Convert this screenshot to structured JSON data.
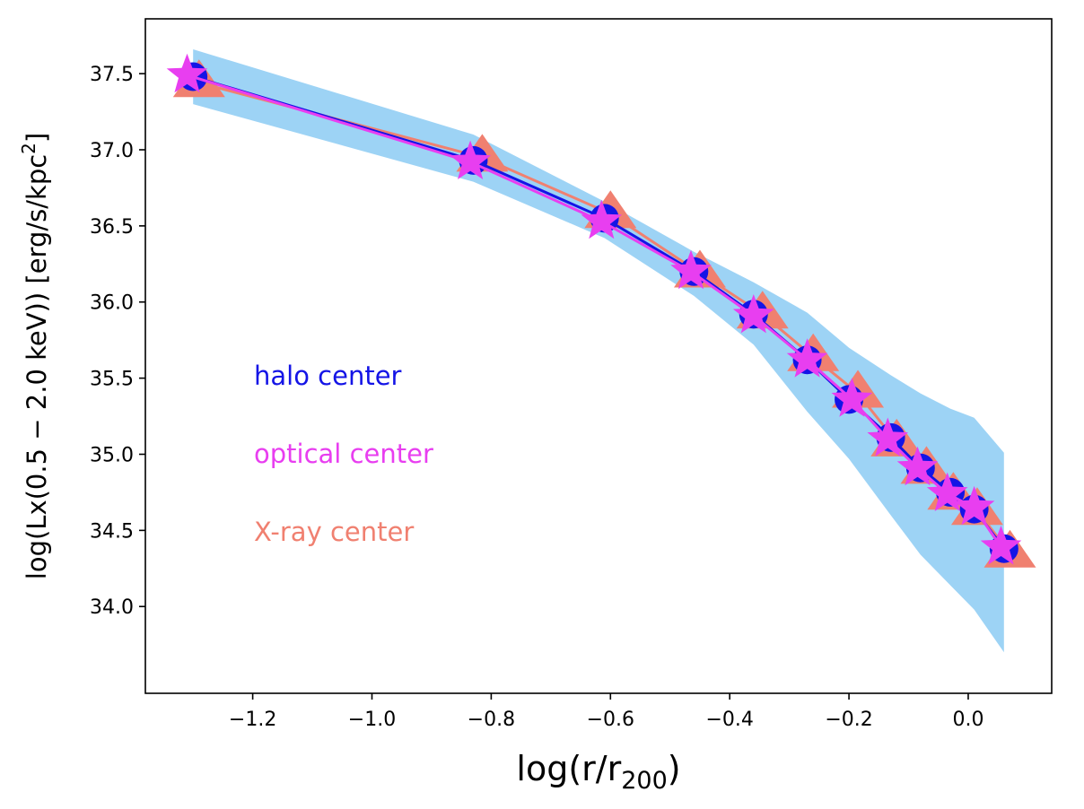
{
  "chart_data": {
    "type": "line",
    "title": "",
    "xlabel": "log(r/r200)",
    "xlabel_main": "log(r/r",
    "xlabel_sub": "200",
    "xlabel_close": ")",
    "ylabel": "log(Lx(0.5 − 2.0 keV)) [erg/s/kpc2]",
    "ylabel_main": "log(Lx(0.5 − 2.0 keV)) [erg/s/kpc",
    "ylabel_sup": "2",
    "ylabel_close": "]",
    "xlim": [
      -1.38,
      0.14
    ],
    "ylim": [
      33.43,
      37.86
    ],
    "xticks": [
      -1.2,
      -1.0,
      -0.8,
      -0.6,
      -0.4,
      -0.2,
      0.0
    ],
    "xtick_labels": [
      "−1.2",
      "−1.0",
      "−0.8",
      "−0.6",
      "−0.4",
      "−0.2",
      "0.0"
    ],
    "yticks": [
      34.0,
      34.5,
      35.0,
      35.5,
      36.0,
      36.5,
      37.0,
      37.5
    ],
    "ytick_labels": [
      "34.0",
      "34.5",
      "35.0",
      "35.5",
      "36.0",
      "36.5",
      "37.0",
      "37.5"
    ],
    "band": {
      "name": "halo center scatter",
      "color": "#9dd3f5",
      "x": [
        -1.3,
        -0.83,
        -0.61,
        -0.46,
        -0.36,
        -0.27,
        -0.2,
        -0.13,
        -0.08,
        -0.03,
        0.01,
        0.06
      ],
      "upper": [
        37.66,
        37.1,
        36.66,
        36.33,
        36.13,
        35.93,
        35.7,
        35.52,
        35.4,
        35.3,
        35.24,
        35.01
      ],
      "lower": [
        37.3,
        36.79,
        36.42,
        36.04,
        35.72,
        35.28,
        34.97,
        34.6,
        34.34,
        34.14,
        33.98,
        33.7
      ]
    },
    "series": [
      {
        "name": "halo center",
        "color": "#1414e6",
        "marker": "circle",
        "x": [
          -1.3,
          -0.83,
          -0.61,
          -0.46,
          -0.36,
          -0.27,
          -0.2,
          -0.13,
          -0.08,
          -0.03,
          0.01,
          0.06
        ],
        "values": [
          37.48,
          36.93,
          36.55,
          36.2,
          35.92,
          35.62,
          35.36,
          35.11,
          34.91,
          34.75,
          34.64,
          34.38
        ]
      },
      {
        "name": "X-ray center",
        "color": "#f08070",
        "marker": "triangle",
        "x": [
          -1.29,
          -0.815,
          -0.6,
          -0.45,
          -0.345,
          -0.26,
          -0.185,
          -0.12,
          -0.07,
          -0.025,
          0.015,
          0.07
        ],
        "values": [
          37.44,
          36.95,
          36.58,
          36.19,
          35.92,
          35.64,
          35.4,
          35.08,
          34.9,
          34.73,
          34.63,
          34.35
        ]
      },
      {
        "name": "optical center",
        "color": "#e83ef0",
        "marker": "star",
        "x": [
          -1.31,
          -0.835,
          -0.615,
          -0.465,
          -0.36,
          -0.27,
          -0.195,
          -0.135,
          -0.085,
          -0.035,
          0.01,
          0.055
        ],
        "values": [
          37.49,
          36.92,
          36.53,
          36.2,
          35.91,
          35.62,
          35.36,
          35.1,
          34.91,
          34.74,
          34.65,
          34.39
        ]
      }
    ],
    "legend": [
      {
        "label": "halo center",
        "color": "#1414e6"
      },
      {
        "label": "optical center",
        "color": "#e83ef0"
      },
      {
        "label": "X-ray center",
        "color": "#f08070"
      }
    ],
    "legend_placement": "middle-left inside axes",
    "grid": false
  }
}
